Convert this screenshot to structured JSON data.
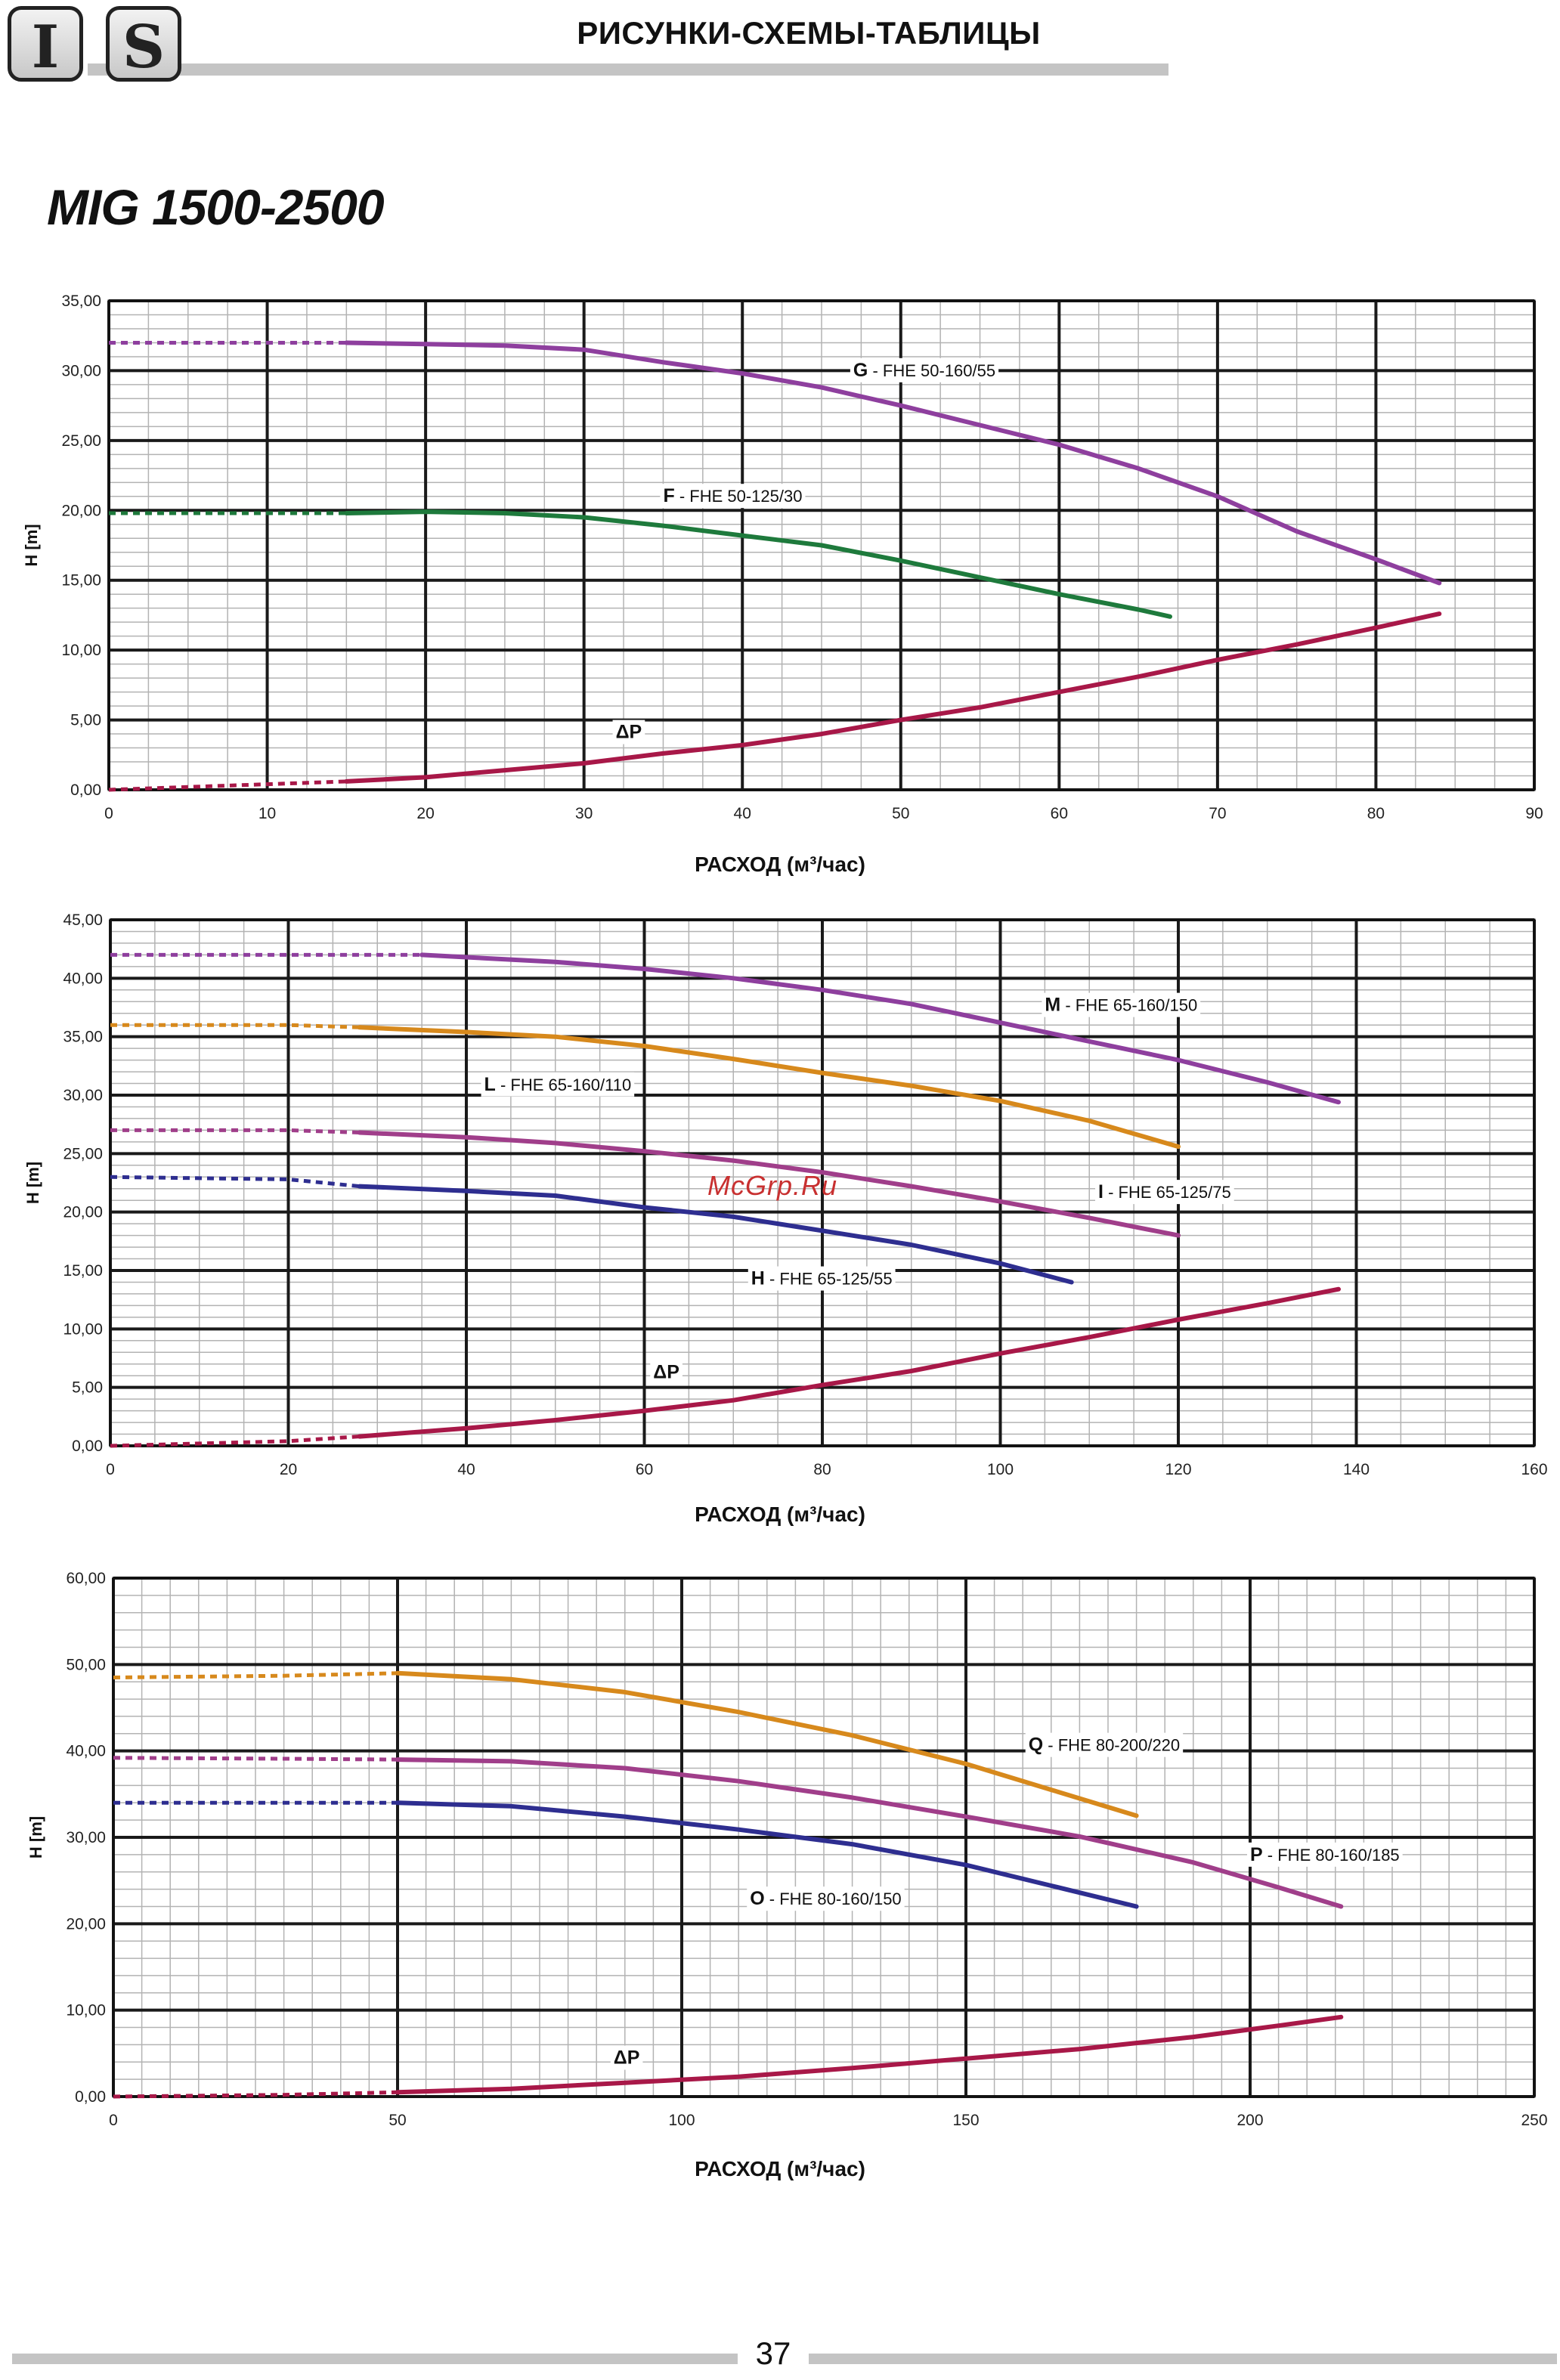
{
  "header": {
    "logo_left": "I",
    "logo_right": "S",
    "title": "РИСУНКИ-СХЕМЫ-ТАБЛИЦЫ"
  },
  "model_title": "MIG 1500-2500",
  "watermark": "McGrp.Ru",
  "page_number": "37",
  "chart_data": [
    {
      "type": "line",
      "xlabel": "РАСХОД (м³/час)",
      "ylabel": "H [m]",
      "xlim": [
        0,
        90
      ],
      "ylim": [
        0,
        35
      ],
      "xticks": [
        "0",
        "10",
        "20",
        "30",
        "40",
        "50",
        "60",
        "70",
        "80",
        "90"
      ],
      "yticks": [
        "0,00",
        "5,00",
        "10,00",
        "15,00",
        "20,00",
        "25,00",
        "30,00",
        "35,00"
      ],
      "grid": true,
      "series": [
        {
          "letter": "G",
          "name": "FHE 50-160/55",
          "color": "#8e3f9e",
          "dashed_until": 15,
          "x": [
            0,
            15,
            20,
            25,
            30,
            35,
            40,
            45,
            50,
            55,
            60,
            65,
            70,
            75,
            80,
            84
          ],
          "y": [
            32.0,
            32.0,
            31.9,
            31.8,
            31.5,
            30.6,
            29.8,
            28.8,
            27.5,
            26.1,
            24.7,
            23.0,
            21.0,
            18.5,
            16.5,
            14.8
          ]
        },
        {
          "letter": "F",
          "name": "FHE 50-125/30",
          "color": "#1e7a3c",
          "dashed_until": 15,
          "x": [
            0,
            15,
            20,
            25,
            30,
            35,
            40,
            45,
            50,
            55,
            60,
            65,
            67
          ],
          "y": [
            19.8,
            19.8,
            19.9,
            19.8,
            19.5,
            18.9,
            18.2,
            17.5,
            16.4,
            15.2,
            14.0,
            12.9,
            12.4
          ]
        },
        {
          "letter": "ΔP",
          "name": "",
          "color": "#a81848",
          "dashed_until": 15,
          "x": [
            0,
            15,
            20,
            25,
            30,
            35,
            40,
            45,
            50,
            55,
            60,
            65,
            70,
            75,
            80,
            84
          ],
          "y": [
            0.0,
            0.6,
            0.9,
            1.4,
            1.9,
            2.6,
            3.2,
            4.0,
            5.0,
            5.9,
            7.0,
            8.1,
            9.3,
            10.4,
            11.6,
            12.6
          ]
        }
      ],
      "labels": [
        {
          "series": 0,
          "at": [
            47,
            29.6
          ]
        },
        {
          "series": 1,
          "at": [
            35,
            20.6
          ]
        },
        {
          "series": 2,
          "at": [
            32,
            3.7
          ]
        }
      ]
    },
    {
      "type": "line",
      "xlabel": "РАСХОД (м³/час)",
      "ylabel": "H [m]",
      "xlim": [
        0,
        160
      ],
      "ylim": [
        0,
        45
      ],
      "xticks": [
        "0",
        "20",
        "40",
        "60",
        "80",
        "100",
        "120",
        "140",
        "160"
      ],
      "yticks": [
        "0,00",
        "5,00",
        "10,00",
        "15,00",
        "20,00",
        "25,00",
        "30,00",
        "35,00",
        "40,00",
        "45,00"
      ],
      "grid": true,
      "series": [
        {
          "letter": "M",
          "name": "FHE 65-160/150",
          "color": "#8e3f9e",
          "dashed_until": 35,
          "x": [
            0,
            20,
            35,
            40,
            50,
            60,
            70,
            80,
            90,
            100,
            110,
            120,
            130,
            138
          ],
          "y": [
            42.0,
            42.0,
            42.0,
            41.8,
            41.4,
            40.8,
            40.0,
            39.0,
            37.8,
            36.2,
            34.6,
            33.0,
            31.1,
            29.4
          ]
        },
        {
          "letter": "L",
          "name": "FHE 65-160/110",
          "color": "#d7891c",
          "dashed_until": 28,
          "x": [
            0,
            20,
            28,
            40,
            50,
            60,
            70,
            80,
            90,
            100,
            110,
            120
          ],
          "y": [
            36.0,
            36.0,
            35.8,
            35.4,
            35.0,
            34.2,
            33.1,
            31.9,
            30.8,
            29.5,
            27.8,
            25.6
          ]
        },
        {
          "letter": "I",
          "name": "FHE 65-125/75",
          "color": "#a03e8a",
          "dashed_until": 28,
          "x": [
            0,
            20,
            28,
            40,
            50,
            60,
            70,
            80,
            90,
            100,
            110,
            120
          ],
          "y": [
            27.0,
            27.0,
            26.8,
            26.4,
            25.9,
            25.2,
            24.4,
            23.4,
            22.2,
            20.9,
            19.5,
            18.0
          ]
        },
        {
          "letter": "H",
          "name": "FHE 65-125/55",
          "color": "#2e2e90",
          "dashed_until": 28,
          "x": [
            0,
            20,
            28,
            40,
            50,
            60,
            70,
            80,
            90,
            100,
            108
          ],
          "y": [
            23.0,
            22.8,
            22.2,
            21.8,
            21.4,
            20.4,
            19.6,
            18.4,
            17.2,
            15.6,
            14.0
          ]
        },
        {
          "letter": "ΔP",
          "name": "",
          "color": "#a81848",
          "dashed_until": 28,
          "x": [
            0,
            20,
            28,
            40,
            50,
            60,
            70,
            80,
            90,
            100,
            110,
            120,
            130,
            138
          ],
          "y": [
            0.0,
            0.4,
            0.8,
            1.5,
            2.2,
            3.0,
            3.9,
            5.2,
            6.4,
            7.9,
            9.3,
            10.8,
            12.2,
            13.4
          ]
        }
      ],
      "labels": [
        {
          "series": 0,
          "at": [
            105,
            37.2
          ]
        },
        {
          "series": 1,
          "at": [
            42,
            30.4
          ]
        },
        {
          "series": 2,
          "at": [
            111,
            21.2
          ]
        },
        {
          "series": 3,
          "at": [
            72,
            13.8
          ]
        },
        {
          "series": 4,
          "at": [
            61,
            5.8
          ]
        }
      ]
    },
    {
      "type": "line",
      "xlabel": "РАСХОД (м³/час)",
      "ylabel": "H [m]",
      "xlim": [
        0,
        250
      ],
      "ylim": [
        0,
        60
      ],
      "xticks": [
        "0",
        "50",
        "100",
        "150",
        "200",
        "250"
      ],
      "yticks": [
        "0,00",
        "10,00",
        "20,00",
        "30,00",
        "40,00",
        "50,00",
        "60,00"
      ],
      "grid": true,
      "series": [
        {
          "letter": "Q",
          "name": "FHE 80-200/220",
          "color": "#d7891c",
          "dashed_until": 50,
          "x": [
            0,
            30,
            50,
            70,
            90,
            110,
            130,
            150,
            165,
            180
          ],
          "y": [
            48.5,
            48.7,
            49.0,
            48.3,
            46.8,
            44.5,
            41.8,
            38.5,
            35.5,
            32.5
          ]
        },
        {
          "letter": "P",
          "name": "FHE 80-160/185",
          "color": "#a03e8a",
          "dashed_until": 50,
          "x": [
            0,
            30,
            50,
            70,
            90,
            110,
            130,
            150,
            170,
            190,
            205,
            216
          ],
          "y": [
            39.2,
            39.1,
            39.0,
            38.8,
            38.0,
            36.5,
            34.6,
            32.4,
            30.1,
            27.1,
            24.2,
            22.0
          ]
        },
        {
          "letter": "O",
          "name": "FHE 80-160/150",
          "color": "#2e2e90",
          "dashed_until": 50,
          "x": [
            0,
            30,
            50,
            70,
            90,
            110,
            130,
            150,
            165,
            180
          ],
          "y": [
            34.0,
            34.0,
            34.0,
            33.6,
            32.4,
            30.9,
            29.2,
            26.8,
            24.4,
            22.0
          ]
        },
        {
          "letter": "ΔP",
          "name": "",
          "color": "#a81848",
          "dashed_until": 50,
          "x": [
            0,
            30,
            50,
            70,
            90,
            110,
            130,
            150,
            170,
            190,
            205,
            216
          ],
          "y": [
            0.0,
            0.2,
            0.5,
            0.9,
            1.6,
            2.3,
            3.3,
            4.4,
            5.5,
            6.9,
            8.2,
            9.2
          ]
        }
      ],
      "labels": [
        {
          "series": 0,
          "at": [
            161,
            40.0
          ]
        },
        {
          "series": 1,
          "at": [
            200,
            27.3
          ]
        },
        {
          "series": 2,
          "at": [
            112,
            22.2
          ]
        },
        {
          "series": 3,
          "at": [
            88,
            3.8
          ]
        }
      ]
    }
  ]
}
